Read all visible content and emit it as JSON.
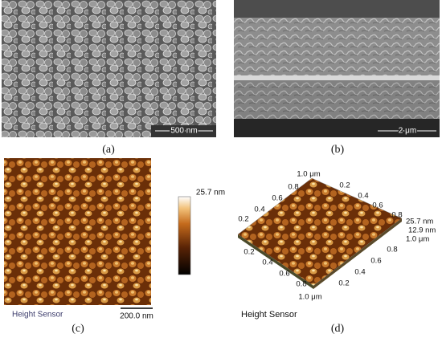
{
  "panels": [
    {
      "label": "(a)",
      "scale_bar": "500 nm"
    },
    {
      "label": "(b)",
      "scale_bar": "2 μm"
    },
    {
      "label": "(c)",
      "scale_bar": "200.0 nm",
      "colorbar_max": "25.7 nm",
      "footer": "Height Sensor"
    },
    {
      "label": "(d)",
      "footer": "Height Sensor",
      "axis_labels": [
        "1.0 μm",
        "0.8",
        "0.6",
        "0.4",
        "0.2",
        "0.2",
        "0.4",
        "0.6",
        "0.8",
        "25.7 nm",
        "12.9 nm",
        "1.0 μm",
        "0.8",
        "0.6",
        "0.4",
        "0.2",
        "0.2",
        "0.4",
        "0.6",
        "0.8",
        "1.0 μm"
      ]
    }
  ]
}
